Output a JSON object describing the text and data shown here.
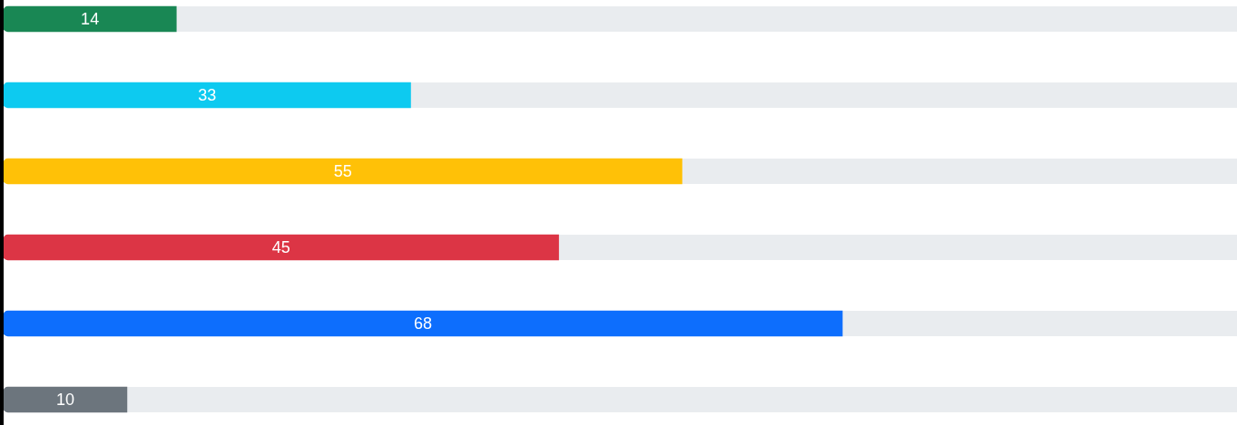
{
  "chart_data": {
    "type": "bar",
    "orientation": "horizontal",
    "categories": [
      null,
      null,
      null,
      null,
      null,
      null
    ],
    "xlim": [
      0,
      100
    ],
    "legend": false,
    "data_labels": true,
    "colors": [
      "#198754",
      "#0dcaf0",
      "#ffc107",
      "#dc3545",
      "#0d6efd",
      "#6c757d"
    ],
    "values": [
      14,
      33,
      55,
      45,
      68,
      10
    ]
  }
}
